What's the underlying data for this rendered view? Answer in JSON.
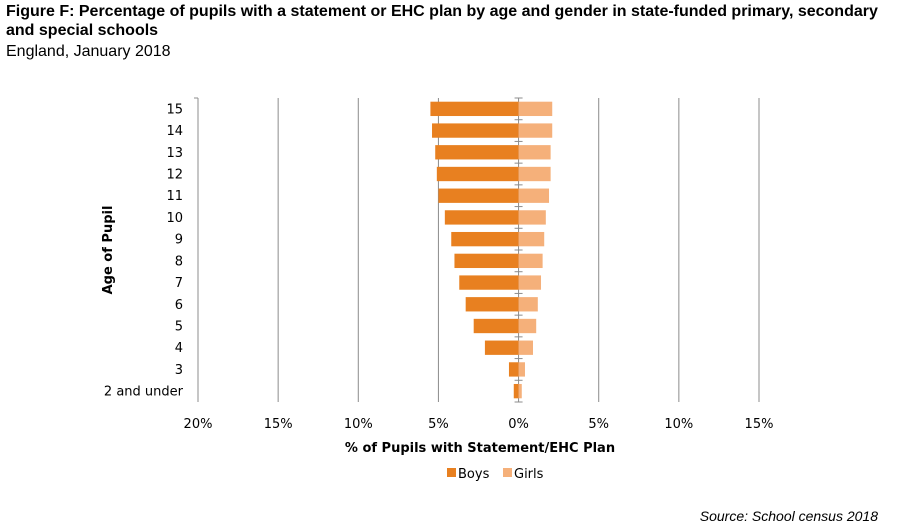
{
  "header": {
    "title": "Figure F: Percentage of pupils with a statement or EHC plan by age and gender in state-funded primary, secondary and special schools",
    "subtitle": "England, January 2018"
  },
  "footer": {
    "source": "Source: School census 2018"
  },
  "chart_data": {
    "type": "bar",
    "orientation": "horizontal",
    "layout": "population-pyramid",
    "categories": [
      "2 and under",
      "3",
      "4",
      "5",
      "6",
      "7",
      "8",
      "9",
      "10",
      "11",
      "12",
      "13",
      "14",
      "15"
    ],
    "series": [
      {
        "name": "Boys",
        "color": "#E88020",
        "values": [
          0.3,
          0.6,
          2.1,
          2.8,
          3.3,
          3.7,
          4.0,
          4.2,
          4.6,
          5.0,
          5.1,
          5.2,
          5.4,
          5.5
        ]
      },
      {
        "name": "Girls",
        "color": "#F5B07A",
        "values": [
          0.2,
          0.4,
          0.9,
          1.1,
          1.2,
          1.4,
          1.5,
          1.6,
          1.7,
          1.9,
          2.0,
          2.0,
          2.1,
          2.1
        ]
      }
    ],
    "xlabel": "% of Pupils with Statement/EHC Plan",
    "ylabel": "Age of Pupil",
    "xlim": [
      -20,
      15
    ],
    "xticks": [
      -20,
      -15,
      -10,
      -5,
      0,
      5,
      10,
      15
    ],
    "xtick_labels": [
      "20%",
      "15%",
      "10%",
      "5%",
      "0%",
      "5%",
      "10%",
      "15%"
    ],
    "grid": "vertical",
    "legend": "bottom"
  }
}
